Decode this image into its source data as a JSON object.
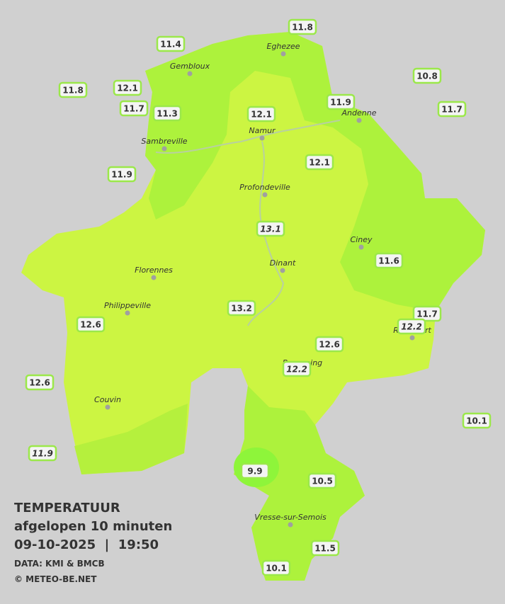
{
  "cities": [
    "Eghezee",
    "Gembloux",
    "Andenne",
    "Namur",
    "Sambreville",
    "Profondeville",
    "Ciney",
    "Dinant",
    "Florennes",
    "Philippeville",
    "Rochefort",
    "Beauraing",
    "Couvin",
    "Vresse-sur-Semois"
  ],
  "stations": [
    "11.8",
    "11.4",
    "10.8",
    "11.8",
    "12.1",
    "11.9",
    "11.7",
    "11.3",
    "12.1",
    "11.7",
    "12.1",
    "11.9",
    "13.1",
    "11.6",
    "13.2",
    "11.7",
    "12.6",
    "12.2",
    "12.6",
    "12.2",
    "12.6",
    "10.1",
    "11.9",
    "9.9",
    "10.5",
    "11.5",
    "10.1"
  ],
  "caption": {
    "title": "TEMPERATUUR",
    "subtitle": "afgelopen 10 minuten",
    "datetime": "09-10-2025  |  19:50",
    "source": "DATA: KMI & BMCB",
    "copyright": "© METEO-BE.NET"
  }
}
